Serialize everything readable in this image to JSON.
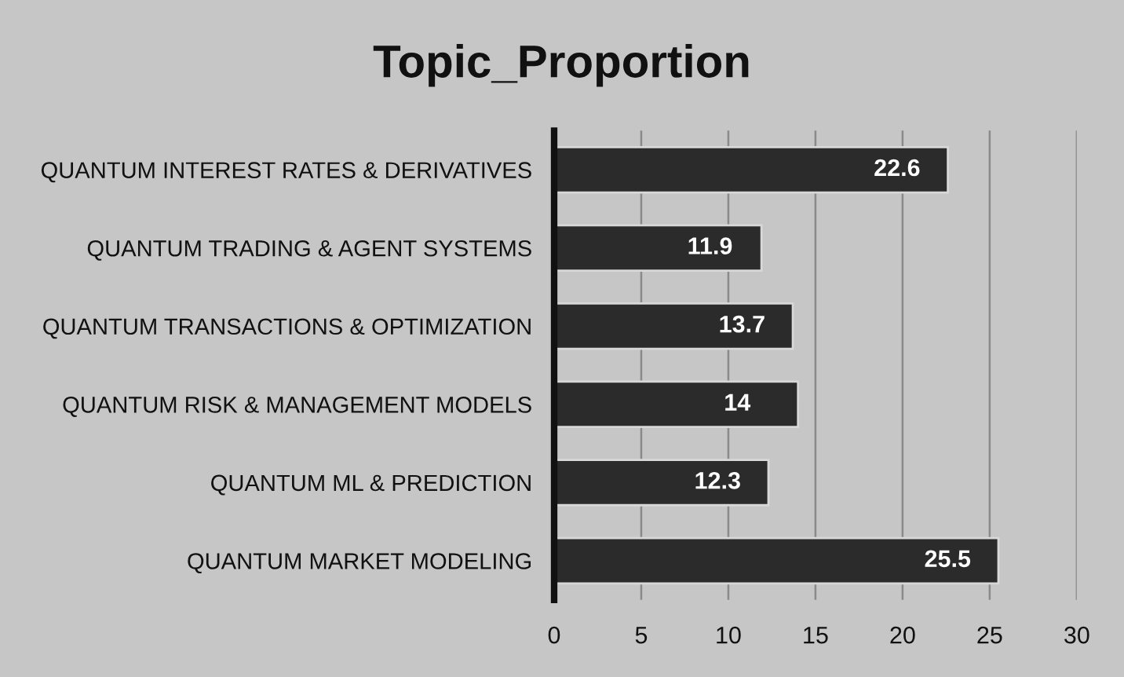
{
  "chart_data": {
    "type": "bar",
    "orientation": "horizontal",
    "title": "Topic_Proportion",
    "categories": [
      "QUANTUM INTEREST RATES & DERIVATIVES",
      "QUANTUM TRADING & AGENT SYSTEMS",
      "QUANTUM TRANSACTIONS & OPTIMIZATION",
      "QUANTUM RISK & MANAGEMENT MODELS",
      "QUANTUM ML & PREDICTION",
      "QUANTUM MARKET MODELING"
    ],
    "values": [
      22.6,
      11.9,
      13.7,
      14,
      12.3,
      25.5
    ],
    "color": "#2b2b2b",
    "data_labels": true,
    "xlim": [
      0,
      30
    ],
    "xticks": [
      0,
      5,
      10,
      15,
      20,
      25,
      30
    ],
    "grid": "x",
    "legend": false
  }
}
